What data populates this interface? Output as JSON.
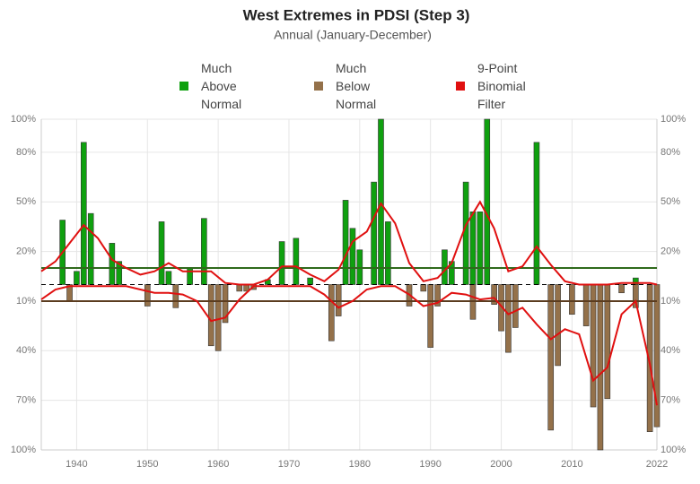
{
  "chart_data": {
    "type": "bar",
    "title": "West Extremes in PDSI (Step 3)",
    "subtitle": "Annual (January-December)",
    "xlim": [
      1935,
      2022
    ],
    "xticks": [
      1940,
      1950,
      1960,
      1970,
      1980,
      1990,
      2000,
      2010,
      2022
    ],
    "ylim": [
      -100,
      100
    ],
    "yticks": [
      {
        "value": 100,
        "label": "100%"
      },
      {
        "value": 80,
        "label": "80%"
      },
      {
        "value": 50,
        "label": "50%"
      },
      {
        "value": 20,
        "label": "20%"
      },
      {
        "value": -10,
        "label": "10%"
      },
      {
        "value": -40,
        "label": "40%"
      },
      {
        "value": -70,
        "label": "70%"
      },
      {
        "value": -100,
        "label": "100%"
      }
    ],
    "grid": true,
    "reference_lines": [
      {
        "value": 10,
        "color": "#2f6a1c"
      },
      {
        "value": -10,
        "color": "#5b3c1f"
      },
      {
        "value": 0,
        "color": "#000000",
        "dashed": true
      }
    ],
    "series": [
      {
        "name": "Much Above Normal",
        "color": "#0fa00f",
        "x": [
          1938,
          1940,
          1941,
          1942,
          1945,
          1946,
          1952,
          1953,
          1956,
          1958,
          1967,
          1969,
          1971,
          1973,
          1978,
          1979,
          1980,
          1982,
          1983,
          1984,
          1992,
          1993,
          1995,
          1996,
          1997,
          1998,
          2005,
          2019
        ],
        "values": [
          39,
          8,
          86,
          43,
          25,
          14,
          38,
          8,
          10,
          40,
          3,
          26,
          28,
          4,
          51,
          34,
          21,
          62,
          100,
          38,
          21,
          14,
          62,
          44,
          44,
          100,
          86,
          4
        ]
      },
      {
        "name": "Much Below Normal",
        "color": "#94714a",
        "x": [
          1939,
          1950,
          1954,
          1959,
          1960,
          1961,
          1963,
          1964,
          1965,
          1976,
          1977,
          1987,
          1989,
          1990,
          1991,
          1996,
          1999,
          2000,
          2001,
          2002,
          2007,
          2008,
          2010,
          2012,
          2013,
          2014,
          2015,
          2017,
          2019,
          2021,
          2022
        ],
        "values": [
          -10,
          -13,
          -14,
          -37,
          -40,
          -23,
          -4,
          -4,
          -3,
          -34,
          -19,
          -13,
          -4,
          -38,
          -13,
          -21,
          -12,
          -28,
          -41,
          -26,
          -88,
          -49,
          -18,
          -25,
          -74,
          -100,
          -69,
          -5,
          -14,
          -89,
          -86
        ]
      },
      {
        "name": "9-Point Binomial Filter",
        "color": "#e01010",
        "type": "line",
        "x": [
          1935,
          1937,
          1939,
          1941,
          1943,
          1945,
          1947,
          1949,
          1951,
          1953,
          1955,
          1957,
          1959,
          1961,
          1963,
          1965,
          1967,
          1969,
          1971,
          1973,
          1975,
          1977,
          1979,
          1981,
          1983,
          1985,
          1987,
          1989,
          1991,
          1993,
          1995,
          1997,
          1999,
          2001,
          2003,
          2005,
          2007,
          2009,
          2011,
          2013,
          2015,
          2017,
          2019,
          2021,
          2022
        ],
        "values": [
          8,
          14,
          25,
          36,
          28,
          15,
          10,
          6,
          8,
          13,
          8,
          8,
          8,
          1,
          0,
          0,
          3,
          11,
          11,
          6,
          2,
          9,
          26,
          32,
          49,
          37,
          13,
          2,
          4,
          13,
          36,
          50,
          34,
          8,
          11,
          23,
          12,
          2,
          0,
          0,
          0,
          1,
          1,
          1,
          0
        ],
        "values_below": [
          -9,
          -3,
          -1,
          -1,
          -1,
          -1,
          -1,
          -3,
          -5,
          -5,
          -6,
          -10,
          -22,
          -20,
          -9,
          -1,
          -1,
          -1,
          -1,
          -1,
          -6,
          -14,
          -10,
          -3,
          -1,
          -1,
          -6,
          -13,
          -11,
          -5,
          -6,
          -9,
          -8,
          -18,
          -14,
          -24,
          -33,
          -27,
          -30,
          -58,
          -50,
          -18,
          -10,
          -48,
          -73
        ]
      }
    ]
  }
}
